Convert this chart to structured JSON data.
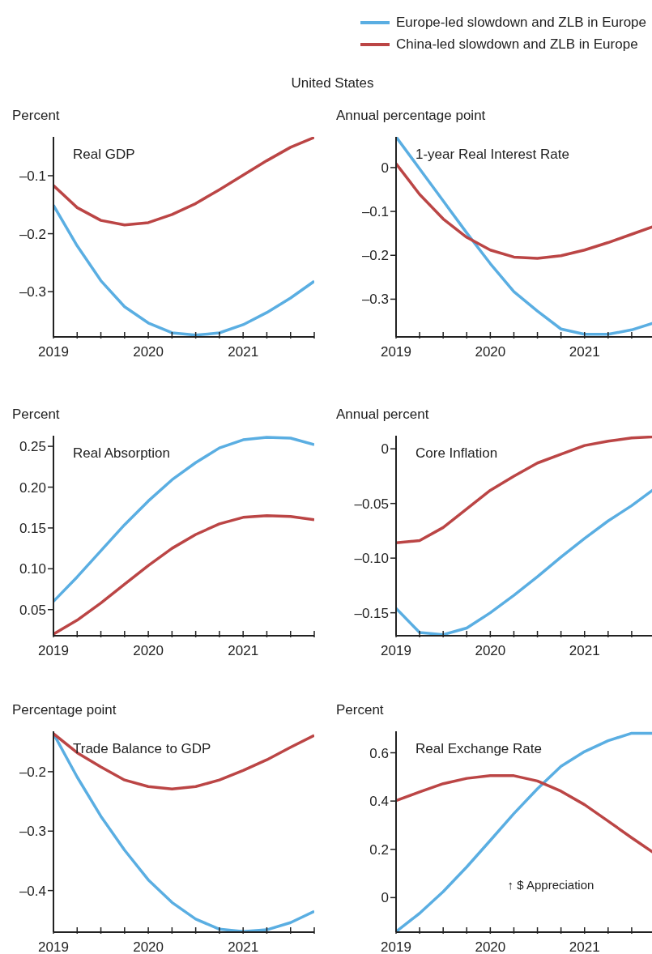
{
  "chart_data": [
    {
      "type": "line",
      "title": "Real GDP",
      "ylabel": "Percent",
      "annotations": [
        "United States"
      ],
      "legend": "top right",
      "x": [
        2019,
        2019.25,
        2019.5,
        2019.75,
        2020,
        2020.25,
        2020.5,
        2020.75,
        2021,
        2021.25,
        2021.5,
        2021.75
      ],
      "xlim": [
        2019,
        2021.75
      ],
      "xticks": [
        2019,
        {
          "value": 2019.25,
          "label": null
        },
        {
          "value": 2019.5,
          "label": null
        },
        {
          "value": 2019.75,
          "label": null
        },
        2020,
        {
          "value": 2020.25,
          "label": null
        },
        {
          "value": 2020.5,
          "label": null
        },
        {
          "value": 2020.75,
          "label": null
        },
        2021,
        {
          "value": 2021.25,
          "label": null
        },
        {
          "value": 2021.5,
          "label": null
        },
        {
          "value": 2021.75,
          "label": null
        }
      ],
      "ylim": [
        -0.378,
        -0.033
      ],
      "yticks": [
        {
          "value": -0.1,
          "label": "–0.1"
        },
        {
          "value": -0.2,
          "label": "–0.2"
        },
        {
          "value": -0.3,
          "label": "–0.3"
        }
      ],
      "series": [
        {
          "name": "Europe-led slowdown and ZLB in Europe",
          "color": "#5aaee2",
          "values": [
            -0.151,
            -0.221,
            -0.281,
            -0.326,
            -0.354,
            -0.371,
            -0.375,
            -0.371,
            -0.357,
            -0.336,
            -0.311,
            -0.282
          ]
        },
        {
          "name": "China-led slowdown and ZLB in Europe",
          "color": "#bb4545",
          "values": [
            -0.117,
            -0.155,
            -0.177,
            -0.185,
            -0.181,
            -0.167,
            -0.148,
            -0.124,
            -0.099,
            -0.074,
            -0.051,
            -0.034
          ]
        }
      ]
    },
    {
      "type": "line",
      "title": "1-year Real Interest Rate",
      "ylabel": "Annual percentage point",
      "x": [
        2019,
        2019.25,
        2019.5,
        2019.75,
        2020,
        2020.25,
        2020.5,
        2020.75,
        2021,
        2021.25,
        2021.5,
        2021.75
      ],
      "xlim": [
        2019,
        2021.75
      ],
      "xticks": [
        2019,
        {
          "value": 2019.25,
          "label": null
        },
        {
          "value": 2019.5,
          "label": null
        },
        {
          "value": 2019.75,
          "label": null
        },
        2020,
        {
          "value": 2020.25,
          "label": null
        },
        {
          "value": 2020.5,
          "label": null
        },
        {
          "value": 2020.75,
          "label": null
        },
        2021,
        {
          "value": 2021.25,
          "label": null
        },
        {
          "value": 2021.5,
          "label": null
        },
        {
          "value": 2021.75,
          "label": null
        }
      ],
      "ylim": [
        -0.386,
        0.07
      ],
      "yticks": [
        {
          "value": 0,
          "label": "0"
        },
        {
          "value": -0.1,
          "label": "–0.1"
        },
        {
          "value": -0.2,
          "label": "–0.2"
        },
        {
          "value": -0.3,
          "label": "–0.3"
        }
      ],
      "series": [
        {
          "color": "#5aaee2",
          "values": [
            0.07,
            -0.003,
            -0.076,
            -0.149,
            -0.219,
            -0.283,
            -0.327,
            -0.368,
            -0.38,
            -0.38,
            -0.37,
            -0.353
          ]
        },
        {
          "color": "#bb4545",
          "values": [
            0.009,
            -0.061,
            -0.117,
            -0.159,
            -0.188,
            -0.204,
            -0.207,
            -0.201,
            -0.188,
            -0.171,
            -0.152,
            -0.133
          ]
        }
      ]
    },
    {
      "type": "line",
      "title": "Real Absorption",
      "ylabel": "Percent",
      "x": [
        2019,
        2019.25,
        2019.5,
        2019.75,
        2020,
        2020.25,
        2020.5,
        2020.75,
        2021,
        2021.25,
        2021.5,
        2021.75
      ],
      "xlim": [
        2019,
        2021.75
      ],
      "xticks": [
        2019,
        {
          "value": 2019.25,
          "label": null
        },
        {
          "value": 2019.5,
          "label": null
        },
        {
          "value": 2019.75,
          "label": null
        },
        2020,
        {
          "value": 2020.25,
          "label": null
        },
        {
          "value": 2020.5,
          "label": null
        },
        {
          "value": 2020.75,
          "label": null
        },
        2021,
        {
          "value": 2021.25,
          "label": null
        },
        {
          "value": 2021.5,
          "label": null
        },
        {
          "value": 2021.75,
          "label": null
        }
      ],
      "ylim": [
        0.018,
        0.263
      ],
      "yticks": [
        {
          "value": 0.05,
          "label": "0.05"
        },
        {
          "value": 0.1,
          "label": "0.10"
        },
        {
          "value": 0.15,
          "label": "0.15"
        },
        {
          "value": 0.2,
          "label": "0.20"
        },
        {
          "value": 0.25,
          "label": "0.25"
        }
      ],
      "series": [
        {
          "color": "#5aaee2",
          "values": [
            0.06,
            0.09,
            0.122,
            0.154,
            0.183,
            0.209,
            0.23,
            0.248,
            0.258,
            0.261,
            0.26,
            0.252
          ]
        },
        {
          "color": "#bb4545",
          "values": [
            0.02,
            0.037,
            0.058,
            0.081,
            0.104,
            0.125,
            0.142,
            0.155,
            0.163,
            0.165,
            0.164,
            0.16
          ]
        }
      ]
    },
    {
      "type": "line",
      "title": "Core Inflation",
      "ylabel": "Annual percent",
      "x": [
        2019,
        2019.25,
        2019.5,
        2019.75,
        2020,
        2020.25,
        2020.5,
        2020.75,
        2021,
        2021.25,
        2021.5,
        2021.75
      ],
      "xlim": [
        2019,
        2021.75
      ],
      "xticks": [
        2019,
        {
          "value": 2019.25,
          "label": null
        },
        {
          "value": 2019.5,
          "label": null
        },
        {
          "value": 2019.75,
          "label": null
        },
        2020,
        {
          "value": 2020.25,
          "label": null
        },
        {
          "value": 2020.5,
          "label": null
        },
        {
          "value": 2020.75,
          "label": null
        },
        2021,
        {
          "value": 2021.25,
          "label": null
        },
        {
          "value": 2021.5,
          "label": null
        },
        {
          "value": 2021.75,
          "label": null
        }
      ],
      "ylim": [
        -0.171,
        0.012
      ],
      "yticks": [
        {
          "value": 0,
          "label": "0"
        },
        {
          "value": -0.05,
          "label": "–0.05"
        },
        {
          "value": -0.1,
          "label": "–0.10"
        },
        {
          "value": -0.15,
          "label": "–0.15"
        }
      ],
      "series": [
        {
          "color": "#5aaee2",
          "values": [
            -0.146,
            -0.168,
            -0.17,
            -0.164,
            -0.15,
            -0.134,
            -0.117,
            -0.099,
            -0.082,
            -0.066,
            -0.052,
            -0.036
          ]
        },
        {
          "color": "#bb4545",
          "values": [
            -0.086,
            -0.084,
            -0.072,
            -0.055,
            -0.038,
            -0.025,
            -0.013,
            -0.005,
            0.003,
            0.007,
            0.01,
            0.011
          ]
        }
      ]
    },
    {
      "type": "line",
      "title": "Trade Balance to GDP",
      "ylabel": "Percentage point",
      "x": [
        2019,
        2019.25,
        2019.5,
        2019.75,
        2020,
        2020.25,
        2020.5,
        2020.75,
        2021,
        2021.25,
        2021.5,
        2021.75
      ],
      "xlim": [
        2019,
        2021.75
      ],
      "xticks": [
        2019,
        {
          "value": 2019.25,
          "label": null
        },
        {
          "value": 2019.5,
          "label": null
        },
        {
          "value": 2019.75,
          "label": null
        },
        2020,
        {
          "value": 2020.25,
          "label": null
        },
        {
          "value": 2020.5,
          "label": null
        },
        {
          "value": 2020.75,
          "label": null
        },
        2021,
        {
          "value": 2021.25,
          "label": null
        },
        {
          "value": 2021.5,
          "label": null
        },
        {
          "value": 2021.75,
          "label": null
        }
      ],
      "ylim": [
        -0.47,
        -0.132
      ],
      "yticks": [
        {
          "value": -0.2,
          "label": "–0.2"
        },
        {
          "value": -0.3,
          "label": "–0.3"
        },
        {
          "value": -0.4,
          "label": "–0.4"
        }
      ],
      "series": [
        {
          "color": "#5aaee2",
          "values": [
            -0.136,
            -0.209,
            -0.275,
            -0.332,
            -0.382,
            -0.42,
            -0.448,
            -0.465,
            -0.469,
            -0.466,
            -0.454,
            -0.435
          ]
        },
        {
          "color": "#bb4545",
          "values": [
            -0.136,
            -0.168,
            -0.192,
            -0.214,
            -0.225,
            -0.229,
            -0.225,
            -0.214,
            -0.198,
            -0.18,
            -0.159,
            -0.139
          ]
        }
      ]
    },
    {
      "type": "line",
      "title": "Real Exchange Rate",
      "ylabel": "Percent",
      "annotations": [
        "↑ $ Appreciation"
      ],
      "x": [
        2019,
        2019.25,
        2019.5,
        2019.75,
        2020,
        2020.25,
        2020.5,
        2020.75,
        2021,
        2021.25,
        2021.5,
        2021.75
      ],
      "xlim": [
        2019,
        2021.75
      ],
      "xticks": [
        2019,
        {
          "value": 2019.25,
          "label": null
        },
        {
          "value": 2019.5,
          "label": null
        },
        {
          "value": 2019.75,
          "label": null
        },
        2020,
        {
          "value": 2020.25,
          "label": null
        },
        {
          "value": 2020.5,
          "label": null
        },
        {
          "value": 2020.75,
          "label": null
        },
        2021,
        {
          "value": 2021.25,
          "label": null
        },
        {
          "value": 2021.5,
          "label": null
        },
        {
          "value": 2021.75,
          "label": null
        }
      ],
      "ylim": [
        -0.143,
        0.689
      ],
      "yticks": [
        {
          "value": 0,
          "label": "0"
        },
        {
          "value": 0.2,
          "label": "0.2"
        },
        {
          "value": 0.4,
          "label": "0.4"
        },
        {
          "value": 0.6,
          "label": "0.6"
        }
      ],
      "series": [
        {
          "color": "#5aaee2",
          "values": [
            -0.141,
            -0.065,
            0.025,
            0.127,
            0.237,
            0.348,
            0.451,
            0.544,
            0.605,
            0.65,
            0.681,
            0.681
          ]
        },
        {
          "color": "#bb4545",
          "values": [
            0.402,
            0.438,
            0.472,
            0.494,
            0.505,
            0.505,
            0.483,
            0.441,
            0.385,
            0.317,
            0.248,
            0.181
          ]
        }
      ]
    }
  ]
}
